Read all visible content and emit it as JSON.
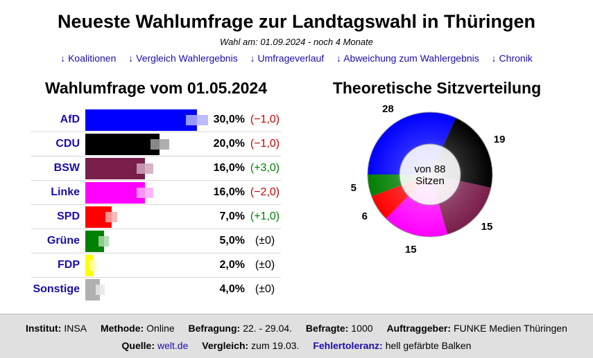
{
  "header": {
    "title": "Neueste Wahlumfrage zur Landtagswahl in Thüringen",
    "subtitle": "Wahl am: 01.09.2024 - noch 4 Monate",
    "links": [
      "↓ Koalitionen",
      "↓ Vergleich Wahlergebnis",
      "↓ Umfrageverlauf",
      "↓ Abweichung zum Wahlergebnis",
      "↓ Chronik"
    ]
  },
  "poll": {
    "heading": "Wahlumfrage vom 01.05.2024"
  },
  "seats": {
    "heading": "Theoretische Sitzverteilung",
    "center_line1": "von 88",
    "center_line2": "Sitzen"
  },
  "chart_data": [
    {
      "type": "bar",
      "orientation": "horizontal",
      "title": "Wahlumfrage vom 01.05.2024",
      "categories": [
        "AfD",
        "CDU",
        "BSW",
        "Linke",
        "SPD",
        "Grüne",
        "FDP",
        "Sonstige"
      ],
      "values": [
        30.0,
        20.0,
        16.0,
        16.0,
        7.0,
        5.0,
        2.0,
        4.0
      ],
      "value_labels": [
        "30,0%",
        "20,0%",
        "16,0%",
        "16,0%",
        "7,0%",
        "5,0%",
        "2,0%",
        "4,0%"
      ],
      "changes": [
        -1.0,
        -1.0,
        3.0,
        -2.0,
        1.0,
        0,
        0,
        0
      ],
      "change_labels": [
        "(−1,0)",
        "(−1,0)",
        "(+3,0)",
        "(−2,0)",
        "(+1,0)",
        "(±0)",
        "(±0)",
        "(±0)"
      ],
      "colors": [
        "#0000ff",
        "#000000",
        "#7a1e4c",
        "#ff00ff",
        "#ff0000",
        "#008000",
        "#ffff00",
        "#b0b0b0"
      ],
      "error_colors": [
        "#b0b0ff",
        "#a0a0a0",
        "#d0a6bb",
        "#ffaaff",
        "#ffaaaa",
        "#a8d8a8",
        "#ffffaa",
        "#e6e6e6"
      ],
      "error_margin": [
        3.0,
        2.5,
        2.3,
        2.3,
        1.6,
        1.4,
        0.9,
        1.2
      ],
      "change_colors": {
        "negative": "#cc0000",
        "positive": "#008000",
        "neutral": "#000000"
      },
      "xlim": [
        0,
        40
      ]
    },
    {
      "type": "pie",
      "style": "donut",
      "title": "Theoretische Sitzverteilung",
      "total": 88,
      "categories": [
        "AfD",
        "CDU",
        "BSW",
        "Linke",
        "SPD",
        "Grüne"
      ],
      "values": [
        28,
        19,
        15,
        15,
        6,
        5
      ],
      "colors": [
        "#0000ff",
        "#000000",
        "#7a1e4c",
        "#ff00ff",
        "#ff0000",
        "#008000"
      ]
    }
  ],
  "footer": {
    "line1": [
      {
        "label": "Institut:",
        "value": "INSA"
      },
      {
        "label": "Methode:",
        "value": "Online"
      },
      {
        "label": "Befragung:",
        "value": "22. - 29.04."
      },
      {
        "label": "Befragte:",
        "value": "1000"
      },
      {
        "label": "Auftraggeber:",
        "value": "FUNKE Medien Thüringen"
      }
    ],
    "line2": [
      {
        "label": "Quelle:",
        "value": "welt.de"
      },
      {
        "label": "Vergleich:",
        "value": "zum 19.03."
      },
      {
        "label": "Fehlertoleranz:",
        "value": "hell gefärbte Balken"
      }
    ]
  }
}
